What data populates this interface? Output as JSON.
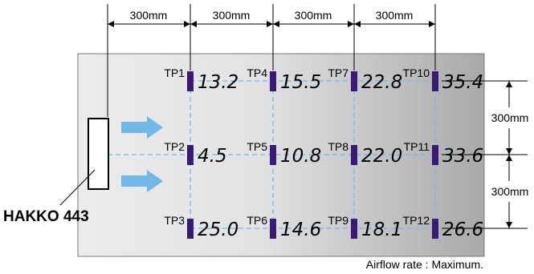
{
  "dimensions": {
    "spacing_top": [
      "300mm",
      "300mm",
      "300mm",
      "300mm"
    ],
    "spacing_right": [
      "300mm",
      "300mm"
    ]
  },
  "device_label": "HAKKO 443",
  "footnote": "Airflow rate : Maximum.",
  "colors": {
    "sensor": "#3a1a78",
    "grid_line": "#6fb8e8",
    "arrow": "#6fb8e8",
    "panel_light": "#ececec",
    "panel_dark": "#a9a9a9"
  },
  "test_points": [
    {
      "label": "TP1",
      "value": "13.2",
      "row": 0,
      "col": 0
    },
    {
      "label": "TP4",
      "value": "15.5",
      "row": 0,
      "col": 1
    },
    {
      "label": "TP7",
      "value": "22.8",
      "row": 0,
      "col": 2
    },
    {
      "label": "TP10",
      "value": "35.4",
      "row": 0,
      "col": 3
    },
    {
      "label": "TP2",
      "value": "4.5",
      "row": 1,
      "col": 0
    },
    {
      "label": "TP5",
      "value": "10.8",
      "row": 1,
      "col": 1
    },
    {
      "label": "TP8",
      "value": "22.0",
      "row": 1,
      "col": 2
    },
    {
      "label": "TP11",
      "value": "33.6",
      "row": 1,
      "col": 3
    },
    {
      "label": "TP3",
      "value": "25.0",
      "row": 2,
      "col": 0
    },
    {
      "label": "TP6",
      "value": "14.6",
      "row": 2,
      "col": 1
    },
    {
      "label": "TP9",
      "value": "18.1",
      "row": 2,
      "col": 2
    },
    {
      "label": "TP12",
      "value": "26.6",
      "row": 2,
      "col": 3
    }
  ]
}
